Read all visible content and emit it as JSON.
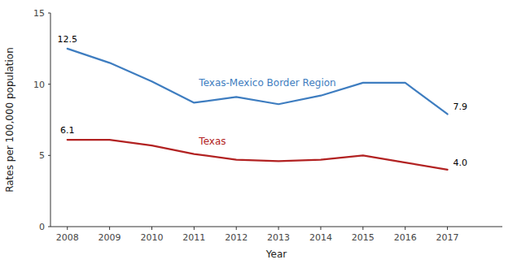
{
  "chart_data": {
    "type": "line",
    "x_label": "Year",
    "y_label": "Rates per 100,000 population",
    "x": [
      2008,
      2009,
      2010,
      2011,
      2012,
      2013,
      2014,
      2015,
      2016,
      2017
    ],
    "series": [
      {
        "name": "Texas-Mexico Border Region",
        "color": "#3E7DC0",
        "values": [
          12.5,
          11.5,
          10.2,
          8.7,
          9.1,
          8.6,
          9.2,
          10.1,
          10.1,
          7.9
        ]
      },
      {
        "name": "Texas",
        "color": "#B22222",
        "values": [
          6.1,
          6.1,
          5.7,
          5.1,
          4.7,
          4.6,
          4.7,
          5.0,
          4.5,
          4.0
        ]
      }
    ],
    "annotations": [
      {
        "text": "12.5",
        "x": 2008,
        "y": 12.5
      },
      {
        "text": "6.1",
        "x": 2008,
        "y": 6.1
      },
      {
        "text": "7.9",
        "x": 2017,
        "y": 7.9
      },
      {
        "text": "4.0",
        "x": 2017,
        "y": 4.0
      }
    ],
    "xlim": [
      2007.6,
      2018.3
    ],
    "xticks": [
      2008,
      2009,
      2010,
      2011,
      2012,
      2013,
      2014,
      2015,
      2016,
      2017
    ],
    "ylim": [
      0,
      15
    ],
    "yticks": [
      0,
      5,
      10,
      15
    ],
    "grid": false
  }
}
